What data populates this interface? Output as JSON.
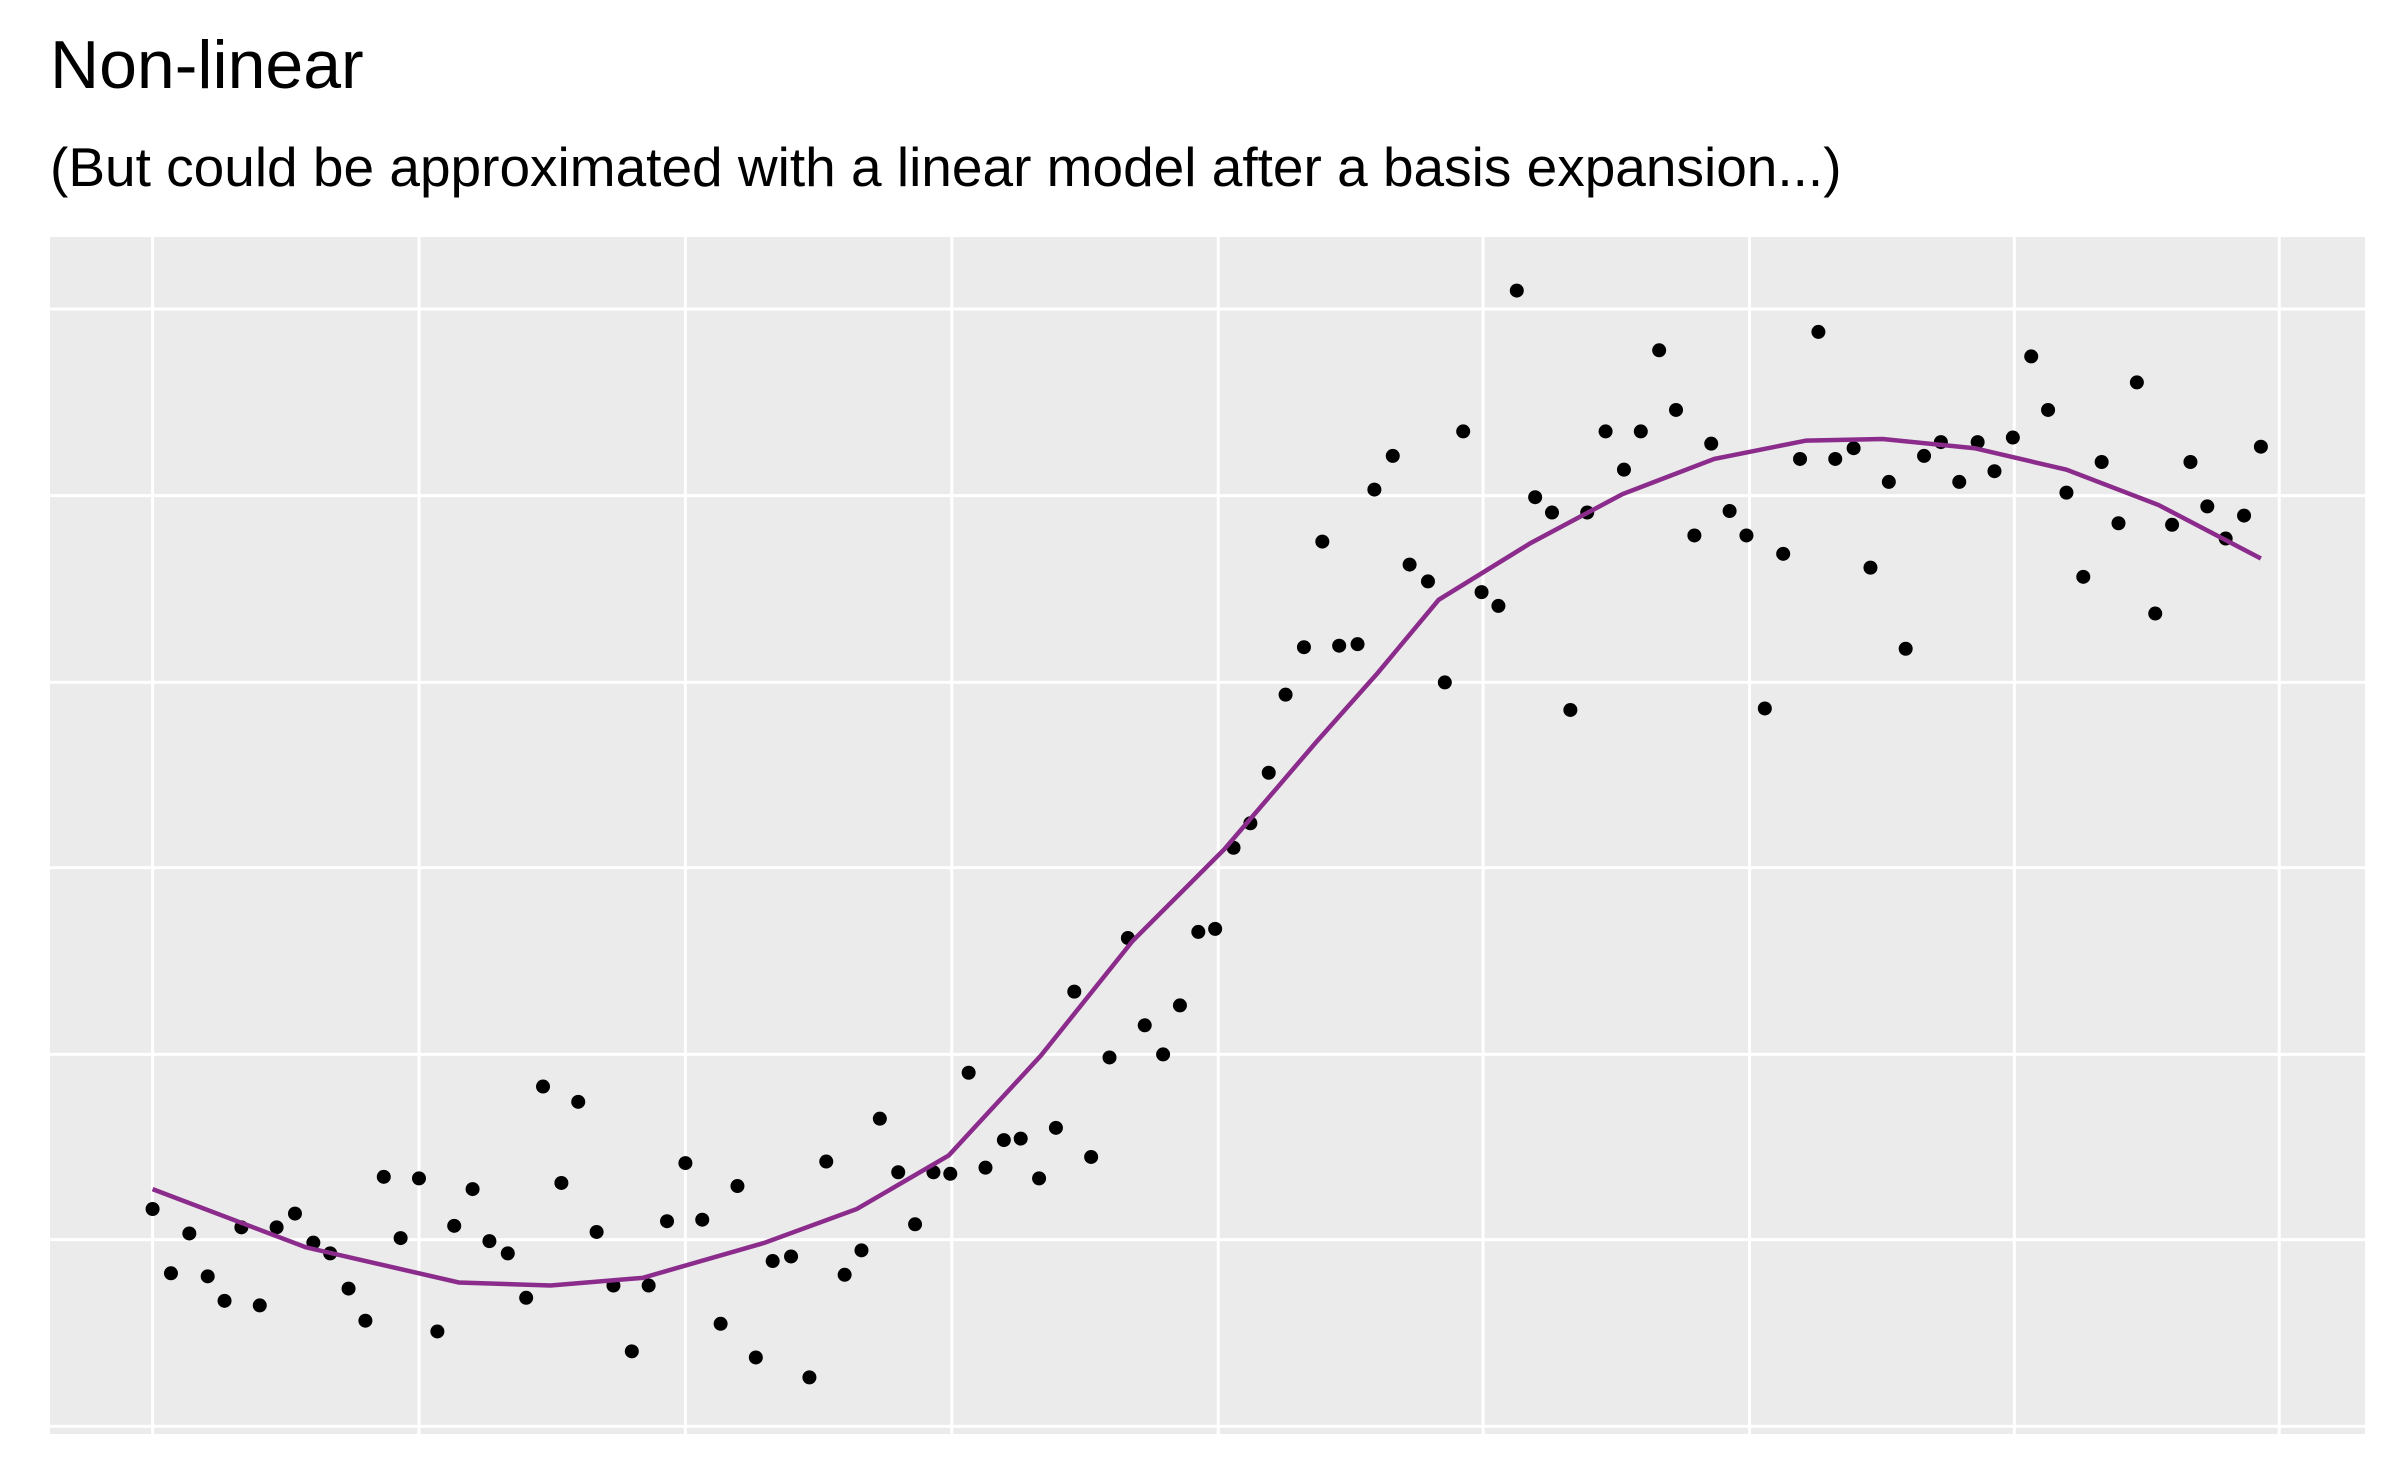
{
  "chart_data": {
    "type": "scatter",
    "title": "Non-linear",
    "subtitle": "(But could be approximated with a linear model after a basis expansion...)",
    "x": [
      0,
      12,
      24,
      36,
      47,
      58,
      70,
      81,
      93,
      105,
      116,
      128,
      139,
      151,
      162,
      174,
      186,
      197,
      209,
      220,
      232,
      244,
      255,
      267,
      278,
      290,
      301,
      313,
      324,
      336,
      348,
      359,
      371,
      382,
      394,
      405,
      417,
      429,
      440,
      452,
      463,
      475,
      487,
      498,
      510,
      521,
      533,
      544,
      556,
      567,
      579,
      590,
      602,
      613,
      625,
      637,
      648,
      660,
      671,
      683,
      694,
      706,
      717,
      729,
      740,
      752,
      764,
      775,
      787,
      798,
      810,
      821,
      833,
      844,
      856,
      868,
      879,
      891,
      903,
      914,
      926,
      937,
      949,
      961,
      972,
      984,
      995,
      1007,
      1018,
      1030,
      1041,
      1053,
      1065,
      1076,
      1088,
      1099,
      1111,
      1122,
      1134,
      1145,
      1157,
      1168,
      1180,
      1192,
      1203,
      1215,
      1227,
      1238,
      1250,
      1261,
      1273,
      1284,
      1296,
      1308,
      1319,
      1331,
      1342,
      1354,
      1366,
      1377
    ],
    "y": [
      142,
      100,
      126,
      98,
      82,
      130,
      79,
      130,
      139,
      120,
      113,
      90,
      69,
      163,
      123,
      162,
      62,
      131,
      155,
      121,
      113,
      84,
      222,
      159,
      212,
      127,
      92,
      49,
      92,
      134,
      172,
      135,
      67,
      157,
      45,
      108,
      111,
      32,
      173,
      99,
      115,
      201,
      166,
      132,
      166,
      165,
      231,
      169,
      187,
      188,
      162,
      195,
      284,
      176,
      241,
      319,
      262,
      243,
      275,
      323,
      325,
      378,
      394,
      427,
      478,
      509,
      578,
      510,
      511,
      612,
      634,
      563,
      552,
      486,
      650,
      545,
      536,
      742,
      607,
      597,
      468,
      597,
      650,
      625,
      650,
      703,
      664,
      582,
      642,
      598,
      582,
      469,
      570,
      632,
      715,
      632,
      639,
      561,
      617,
      508,
      634,
      643,
      617,
      643,
      624,
      646,
      699,
      664,
      610,
      555,
      630,
      590,
      682,
      531,
      589,
      630,
      601,
      580,
      595,
      640
    ],
    "point_color": "#000000",
    "line": {
      "x": [
        0,
        100,
        200,
        260,
        320,
        400,
        460,
        520,
        580,
        640,
        700,
        760,
        800,
        840,
        900,
        960,
        1020,
        1080,
        1130,
        1190,
        1250,
        1310,
        1377
      ],
      "y": [
        155,
        117,
        94,
        92,
        97,
        120,
        142,
        177,
        242,
        317,
        377,
        447,
        492,
        540,
        577,
        609,
        632,
        644,
        645,
        639,
        625,
        602,
        567
      ],
      "color": "#8b2c8c"
    },
    "xlim": [
      -67,
      1445
    ],
    "ylim": [
      -5,
      777
    ],
    "xticks": [
      0,
      174,
      348,
      522,
      696,
      869,
      1043,
      1216,
      1389
    ],
    "yticks": [
      0,
      122,
      243,
      365,
      486,
      608,
      730
    ],
    "grid": true
  }
}
